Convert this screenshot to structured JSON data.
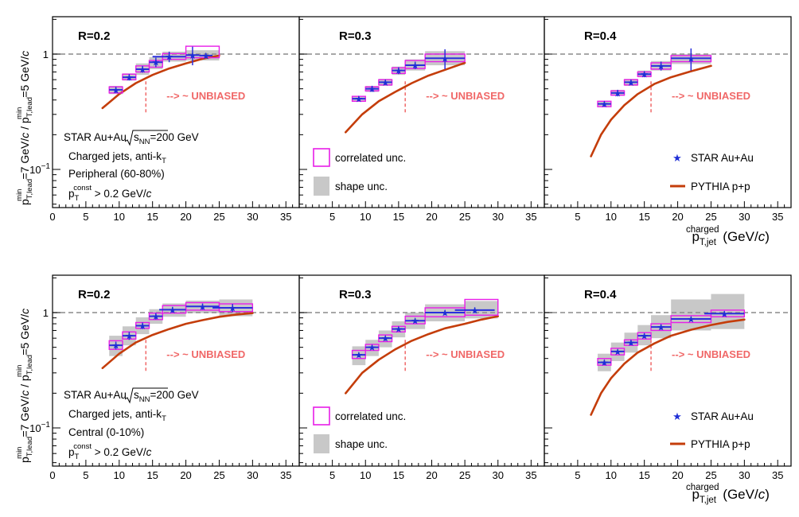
{
  "figure": {
    "ylabel_main": "p",
    "ylabel_parts": {
      "p1": "p",
      "sup1": "min",
      "sub1": "T,lead",
      "mid": "=7 GeV/",
      "c1": "c",
      "slash": " / ",
      "p2": "p",
      "sup2": "min",
      "sub2": "T,lead",
      "end": "=5 GeV/",
      "c2": "c"
    },
    "xlabel_parts": {
      "p": "p",
      "sup": "charged",
      "sub": "T,jet",
      "unit": " (GeV/",
      "c": "c",
      "close": ")"
    },
    "y_ticks": [
      {
        "v": 1,
        "label": "1"
      },
      {
        "v": 0.1,
        "label": "10",
        "exp": "−1"
      }
    ],
    "x_ticks_first": [
      0,
      5,
      10,
      15,
      20,
      25,
      30,
      35
    ],
    "x_ticks_other": [
      5,
      10,
      15,
      20,
      25,
      30,
      35
    ],
    "unbiased_text": "--> ~ UNBIASED",
    "colors": {
      "star": "#1f2fd6",
      "star_line": "#2b2fdc",
      "correlated": "#e81ee8",
      "shape": "#c8c8c8",
      "pythia": "#c43d0a",
      "unbiased": "#f06868",
      "ref_line": "#8a8a8a"
    }
  },
  "annotations": {
    "star_label": "STAR Au+Au",
    "sqrt_s": "s",
    "sqrt_sub": "NN",
    "energy": "=200 GeV",
    "jets": "Charged jets, anti-k",
    "jets_sub": "T",
    "peripheral": "Peripheral (60-80%)",
    "central": "Central (0-10%)",
    "const_p": "p",
    "const_sub": "T",
    "const_sup": "const",
    "const_cut": " > 0.2 GeV/",
    "const_c": "c"
  },
  "legend": {
    "correlated": "correlated unc.",
    "shape": "shape unc.",
    "star": "STAR Au+Au",
    "pythia": "PYTHIA p+p"
  },
  "chart_data": [
    {
      "type": "scatter",
      "row": "peripheral",
      "R": "R=0.2",
      "xlim": [
        0,
        37
      ],
      "ylim": [
        0.05,
        2.0
      ],
      "yscale": "log",
      "unbiased_x": 14,
      "star": {
        "x": [
          9.5,
          11.5,
          13.5,
          15.5,
          17.5,
          21,
          23
        ],
        "y": [
          0.49,
          0.63,
          0.74,
          0.85,
          0.95,
          0.98,
          0.97
        ],
        "xerr": [
          1,
          1,
          1,
          1,
          2.5,
          1,
          1
        ],
        "yerr": [
          0.03,
          0.04,
          0.05,
          0.08,
          0.1,
          0.18,
          0.05
        ]
      },
      "corr": [
        [
          8.5,
          10.5,
          0.46,
          0.52
        ],
        [
          10.5,
          12.5,
          0.6,
          0.67
        ],
        [
          12.5,
          14.5,
          0.7,
          0.79
        ],
        [
          14.5,
          16.5,
          0.77,
          0.88
        ],
        [
          16.5,
          20,
          0.9,
          1.01
        ],
        [
          20,
          25,
          0.93,
          1.17
        ]
      ],
      "shape": [
        [
          8.5,
          10.5,
          0.45,
          0.53
        ],
        [
          10.5,
          12.5,
          0.59,
          0.68
        ],
        [
          12.5,
          14.5,
          0.66,
          0.83
        ],
        [
          14.5,
          16.5,
          0.74,
          0.94
        ],
        [
          16.5,
          20,
          0.86,
          1.05
        ],
        [
          20,
          25,
          0.88,
          1.08
        ]
      ],
      "pythia": {
        "x": [
          7.5,
          10,
          12.5,
          15,
          17.5,
          20,
          22.5,
          25
        ],
        "y": [
          0.34,
          0.45,
          0.56,
          0.66,
          0.75,
          0.83,
          0.91,
          0.97
        ]
      }
    },
    {
      "type": "scatter",
      "row": "peripheral",
      "R": "R=0.3",
      "xlim": [
        0,
        37
      ],
      "ylim": [
        0.05,
        2.0
      ],
      "yscale": "log",
      "unbiased_x": 16,
      "star": {
        "x": [
          9,
          11,
          13,
          15,
          17.5,
          22
        ],
        "y": [
          0.41,
          0.5,
          0.57,
          0.72,
          0.8,
          0.92
        ],
        "xerr": [
          1,
          1,
          1,
          1,
          1.5,
          3
        ],
        "yerr": [
          0.02,
          0.03,
          0.03,
          0.05,
          0.06,
          0.18
        ]
      },
      "corr": [
        [
          8,
          10,
          0.39,
          0.43
        ],
        [
          10,
          12,
          0.48,
          0.52
        ],
        [
          12,
          14,
          0.54,
          0.6
        ],
        [
          14,
          16,
          0.68,
          0.76
        ],
        [
          16,
          19,
          0.75,
          0.88
        ],
        [
          19,
          25,
          0.86,
          1.0
        ]
      ],
      "shape": [
        [
          8,
          10,
          0.39,
          0.43
        ],
        [
          10,
          12,
          0.47,
          0.53
        ],
        [
          12,
          14,
          0.53,
          0.61
        ],
        [
          14,
          16,
          0.66,
          0.78
        ],
        [
          16,
          19,
          0.72,
          0.9
        ],
        [
          19,
          25,
          0.8,
          1.06
        ]
      ],
      "pythia": {
        "x": [
          7,
          9.5,
          12,
          14.5,
          17,
          19.5,
          22,
          25
        ],
        "y": [
          0.21,
          0.3,
          0.39,
          0.47,
          0.56,
          0.65,
          0.73,
          0.84
        ]
      }
    },
    {
      "type": "scatter",
      "row": "peripheral",
      "R": "R=0.4",
      "xlim": [
        0,
        37
      ],
      "ylim": [
        0.05,
        2.0
      ],
      "yscale": "log",
      "unbiased_x": 16,
      "star": {
        "x": [
          9,
          11,
          13,
          15,
          17.5,
          22
        ],
        "y": [
          0.37,
          0.46,
          0.57,
          0.67,
          0.79,
          0.92
        ],
        "xerr": [
          1,
          1,
          1,
          1,
          1.5,
          3
        ],
        "yerr": [
          0.02,
          0.03,
          0.03,
          0.04,
          0.07,
          0.2
        ]
      },
      "corr": [
        [
          8,
          10,
          0.35,
          0.39
        ],
        [
          10,
          12,
          0.44,
          0.48
        ],
        [
          12,
          14,
          0.54,
          0.6
        ],
        [
          14,
          16,
          0.64,
          0.7
        ],
        [
          16,
          19,
          0.74,
          0.84
        ],
        [
          19,
          25,
          0.86,
          0.97
        ]
      ],
      "shape": [
        [
          8,
          10,
          0.35,
          0.39
        ],
        [
          10,
          12,
          0.44,
          0.49
        ],
        [
          12,
          14,
          0.53,
          0.61
        ],
        [
          14,
          16,
          0.63,
          0.72
        ],
        [
          16,
          19,
          0.72,
          0.87
        ],
        [
          19,
          25,
          0.82,
          1.0
        ]
      ],
      "pythia": {
        "x": [
          7,
          8.5,
          10,
          12,
          14,
          16.5,
          19,
          22,
          25
        ],
        "y": [
          0.13,
          0.2,
          0.27,
          0.36,
          0.45,
          0.55,
          0.63,
          0.71,
          0.79
        ]
      }
    },
    {
      "type": "scatter",
      "row": "central",
      "R": "R=0.2",
      "xlim": [
        0,
        37
      ],
      "ylim": [
        0.05,
        2.0
      ],
      "yscale": "log",
      "unbiased_x": 14,
      "star": {
        "x": [
          9.5,
          11.5,
          13.5,
          15.5,
          18,
          22.5,
          27
        ],
        "y": [
          0.52,
          0.63,
          0.77,
          0.93,
          1.06,
          1.13,
          1.1
        ],
        "xerr": [
          1,
          1,
          1,
          1,
          2,
          2.5,
          3
        ],
        "yerr": [
          0.04,
          0.05,
          0.05,
          0.06,
          0.06,
          0.07,
          0.09
        ]
      },
      "corr": [
        [
          8.5,
          10.5,
          0.48,
          0.57
        ],
        [
          10.5,
          12.5,
          0.59,
          0.68
        ],
        [
          12.5,
          14.5,
          0.73,
          0.82
        ],
        [
          14.5,
          16.5,
          0.87,
          0.99
        ],
        [
          16.5,
          20,
          0.99,
          1.15
        ],
        [
          20,
          25,
          1.05,
          1.22
        ],
        [
          25,
          30,
          1.02,
          1.19
        ]
      ],
      "shape": [
        [
          8.5,
          10.5,
          0.42,
          0.63
        ],
        [
          10.5,
          12.5,
          0.52,
          0.76
        ],
        [
          12.5,
          14.5,
          0.65,
          0.91
        ],
        [
          14.5,
          16.5,
          0.8,
          1.07
        ],
        [
          16.5,
          20,
          0.92,
          1.2
        ],
        [
          20,
          25,
          0.99,
          1.27
        ],
        [
          25,
          30,
          0.93,
          1.3
        ]
      ],
      "pythia": {
        "x": [
          7.5,
          10,
          12.5,
          15,
          17.5,
          20,
          22.5,
          25,
          27.5,
          30
        ],
        "y": [
          0.33,
          0.44,
          0.55,
          0.64,
          0.72,
          0.8,
          0.86,
          0.92,
          0.96,
          0.99
        ]
      }
    },
    {
      "type": "scatter",
      "row": "central",
      "R": "R=0.3",
      "xlim": [
        0,
        37
      ],
      "ylim": [
        0.05,
        2.0
      ],
      "yscale": "log",
      "unbiased_x": 16,
      "star": {
        "x": [
          9,
          11,
          13,
          15,
          17.5,
          22,
          26.5
        ],
        "y": [
          0.43,
          0.5,
          0.6,
          0.72,
          0.85,
          1.0,
          1.05
        ],
        "xerr": [
          1,
          1,
          1,
          1,
          1.5,
          3,
          3
        ],
        "yerr": [
          0.02,
          0.02,
          0.03,
          0.03,
          0.04,
          0.05,
          0.06
        ]
      },
      "corr": [
        [
          8,
          10,
          0.4,
          0.47
        ],
        [
          10,
          12,
          0.47,
          0.53
        ],
        [
          12,
          14,
          0.56,
          0.64
        ],
        [
          14,
          16,
          0.68,
          0.76
        ],
        [
          16,
          19,
          0.8,
          0.93
        ],
        [
          19,
          25,
          0.92,
          1.1
        ],
        [
          25,
          30,
          0.95,
          1.3
        ]
      ],
      "shape": [
        [
          8,
          10,
          0.35,
          0.51
        ],
        [
          10,
          12,
          0.42,
          0.58
        ],
        [
          12,
          14,
          0.5,
          0.7
        ],
        [
          14,
          16,
          0.61,
          0.84
        ],
        [
          16,
          19,
          0.72,
          1.0
        ],
        [
          19,
          25,
          0.84,
          1.18
        ],
        [
          25,
          30,
          0.89,
          1.26
        ]
      ],
      "pythia": {
        "x": [
          7,
          9.5,
          12,
          14.5,
          17,
          19.5,
          22,
          25,
          27.5,
          30
        ],
        "y": [
          0.2,
          0.3,
          0.39,
          0.48,
          0.57,
          0.65,
          0.73,
          0.8,
          0.87,
          0.93
        ]
      }
    },
    {
      "type": "scatter",
      "row": "central",
      "R": "R=0.4",
      "xlim": [
        0,
        37
      ],
      "ylim": [
        0.05,
        2.0
      ],
      "yscale": "log",
      "unbiased_x": 16,
      "star": {
        "x": [
          9,
          11,
          13,
          15,
          17.5,
          22,
          27
        ],
        "y": [
          0.37,
          0.46,
          0.55,
          0.63,
          0.75,
          0.88,
          0.98
        ],
        "xerr": [
          1,
          1,
          1,
          1,
          1.5,
          3,
          3
        ],
        "yerr": [
          0.02,
          0.02,
          0.03,
          0.03,
          0.04,
          0.04,
          0.05
        ]
      },
      "corr": [
        [
          8,
          10,
          0.35,
          0.4
        ],
        [
          10,
          12,
          0.43,
          0.49
        ],
        [
          12,
          14,
          0.52,
          0.58
        ],
        [
          14,
          16,
          0.59,
          0.67
        ],
        [
          16,
          19,
          0.7,
          0.8
        ],
        [
          19,
          25,
          0.82,
          0.94
        ],
        [
          25,
          30,
          0.92,
          1.05
        ]
      ],
      "shape": [
        [
          8,
          10,
          0.31,
          0.44
        ],
        [
          10,
          12,
          0.38,
          0.55
        ],
        [
          12,
          14,
          0.45,
          0.67
        ],
        [
          14,
          16,
          0.52,
          0.78
        ],
        [
          16,
          19,
          0.6,
          0.95
        ],
        [
          19,
          25,
          0.7,
          1.3
        ],
        [
          25,
          30,
          0.72,
          1.45
        ]
      ],
      "pythia": {
        "x": [
          7,
          8.5,
          10,
          12,
          14,
          16.5,
          19,
          22,
          25,
          27.5,
          30
        ],
        "y": [
          0.13,
          0.2,
          0.27,
          0.36,
          0.45,
          0.54,
          0.63,
          0.71,
          0.78,
          0.83,
          0.87
        ]
      }
    }
  ]
}
